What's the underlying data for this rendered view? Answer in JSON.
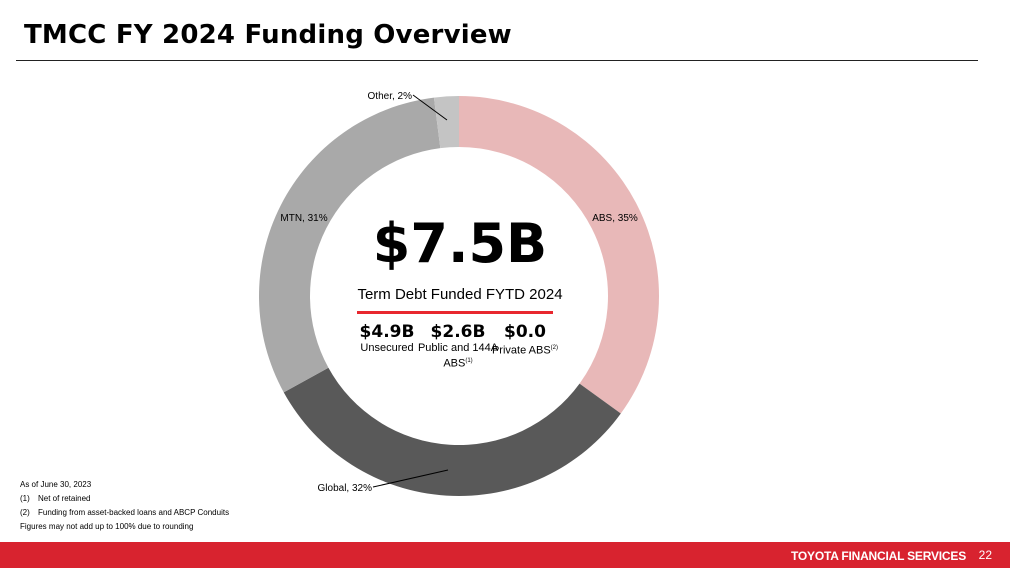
{
  "header": {
    "title": "TMCC FY 2024 Funding Overview"
  },
  "chart_data": {
    "type": "pie",
    "donut": true,
    "categories": [
      "ABS",
      "Global",
      "MTN",
      "Other"
    ],
    "values": [
      35,
      32,
      31,
      2
    ],
    "labels": [
      "ABS, 35%",
      "Global, 32%",
      "MTN, 31%",
      "Other, 2%"
    ],
    "colors": [
      "#e8b8b8",
      "#595959",
      "#a9a9a9",
      "#c4c4c4"
    ],
    "center": {
      "amount": "$7.5B",
      "caption": "Term Debt Funded FYTD 2024",
      "breakdown": [
        {
          "value": "$4.9B",
          "label": "Unsecured",
          "note": ""
        },
        {
          "value": "$2.6B",
          "label": "Public and 144A ABS",
          "note": "(1)"
        },
        {
          "value": "$0.0",
          "label": "Private ABS",
          "note": "(2)"
        }
      ]
    }
  },
  "footnotes": {
    "as_of": "As of June 30, 2023",
    "items": [
      {
        "num": "(1)",
        "text": "Net of retained"
      },
      {
        "num": "(2)",
        "text": "Funding from asset-backed loans and ABCP Conduits"
      }
    ],
    "disclaimer": "Figures may not add up to 100% due to rounding"
  },
  "footer": {
    "brand": "TOYOTA FINANCIAL SERVICES",
    "page": "22"
  },
  "accent_color": "#d8232f"
}
